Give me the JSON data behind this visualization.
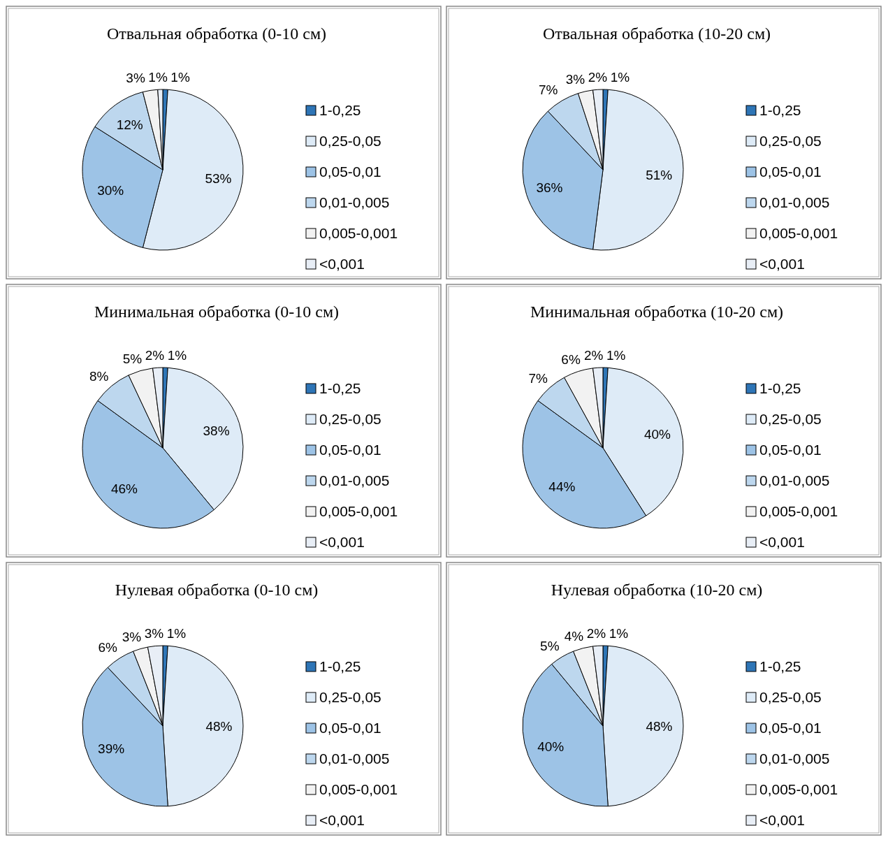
{
  "chart_data": [
    {
      "type": "pie",
      "title": "Отвальная обработка (0-10 см)",
      "categories": [
        "1-0,25",
        "0,25-0,05",
        "0,05-0,01",
        "0,01-0,005",
        "0,005-0,001",
        "<0,001"
      ],
      "values": [
        1,
        53,
        30,
        12,
        3,
        1
      ],
      "value_labels": [
        "1%",
        "53%",
        "30%",
        "12%",
        "3%",
        "1%"
      ],
      "colors": [
        "#2e75b6",
        "#deebf7",
        "#9dc3e6",
        "#bdd7ee",
        "#f2f2f2",
        "#e8eef6"
      ],
      "legend": "right"
    },
    {
      "type": "pie",
      "title": "Отвальная обработка (10-20 см)",
      "categories": [
        "1-0,25",
        "0,25-0,05",
        "0,05-0,01",
        "0,01-0,005",
        "0,005-0,001",
        "<0,001"
      ],
      "values": [
        1,
        51,
        36,
        7,
        3,
        2
      ],
      "value_labels": [
        "1%",
        "51%",
        "36%",
        "7%",
        "3%",
        "2%"
      ],
      "colors": [
        "#2e75b6",
        "#deebf7",
        "#9dc3e6",
        "#bdd7ee",
        "#f2f2f2",
        "#e8eef6"
      ],
      "legend": "right"
    },
    {
      "type": "pie",
      "title": "Минимальная обработка (0-10 см)",
      "categories": [
        "1-0,25",
        "0,25-0,05",
        "0,05-0,01",
        "0,01-0,005",
        "0,005-0,001",
        "<0,001"
      ],
      "values": [
        1,
        38,
        46,
        8,
        5,
        2
      ],
      "value_labels": [
        "1%",
        "38%",
        "46%",
        "8%",
        "5%",
        "2%"
      ],
      "colors": [
        "#2e75b6",
        "#deebf7",
        "#9dc3e6",
        "#bdd7ee",
        "#f2f2f2",
        "#e8eef6"
      ],
      "legend": "right"
    },
    {
      "type": "pie",
      "title": "Минимальная обработка (10-20 см)",
      "categories": [
        "1-0,25",
        "0,25-0,05",
        "0,05-0,01",
        "0,01-0,005",
        "0,005-0,001",
        "<0,001"
      ],
      "values": [
        1,
        40,
        44,
        7,
        6,
        2
      ],
      "value_labels": [
        "1%",
        "40%",
        "44%",
        "7%",
        "6%",
        "2%"
      ],
      "colors": [
        "#2e75b6",
        "#deebf7",
        "#9dc3e6",
        "#bdd7ee",
        "#f2f2f2",
        "#e8eef6"
      ],
      "legend": "right"
    },
    {
      "type": "pie",
      "title": "Нулевая обработка (0-10 см)",
      "categories": [
        "1-0,25",
        "0,25-0,05",
        "0,05-0,01",
        "0,01-0,005",
        "0,005-0,001",
        "<0,001"
      ],
      "values": [
        1,
        48,
        39,
        6,
        3,
        3
      ],
      "value_labels": [
        "1%",
        "48%",
        "39%",
        "6%",
        "3%",
        "3%"
      ],
      "colors": [
        "#2e75b6",
        "#deebf7",
        "#9dc3e6",
        "#bdd7ee",
        "#f2f2f2",
        "#e8eef6"
      ],
      "legend": "right"
    },
    {
      "type": "pie",
      "title": "Нулевая обработка (10-20 см)",
      "categories": [
        "1-0,25",
        "0,25-0,05",
        "0,05-0,01",
        "0,01-0,005",
        "0,005-0,001",
        "<0,001"
      ],
      "values": [
        1,
        48,
        40,
        5,
        4,
        2
      ],
      "value_labels": [
        "1%",
        "48%",
        "40%",
        "5%",
        "4%",
        "2%"
      ],
      "colors": [
        "#2e75b6",
        "#deebf7",
        "#9dc3e6",
        "#bdd7ee",
        "#f2f2f2",
        "#e8eef6"
      ],
      "legend": "right"
    }
  ]
}
